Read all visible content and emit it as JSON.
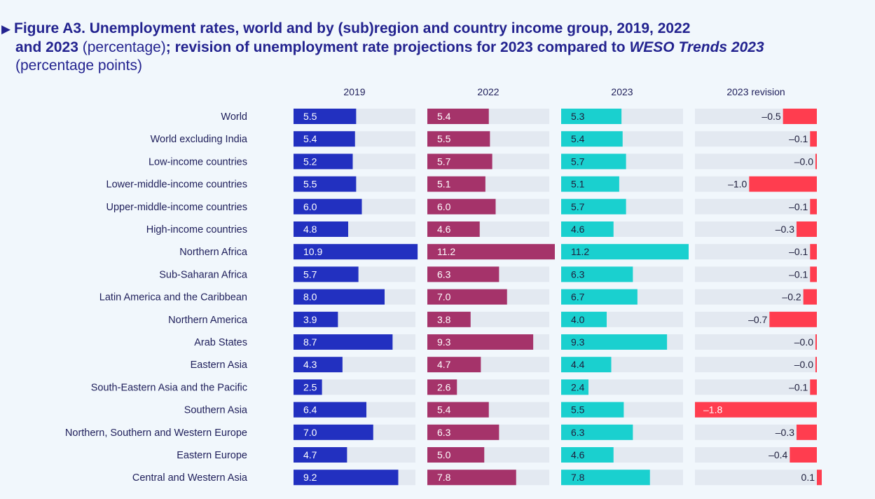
{
  "title": {
    "marker": "▶",
    "line1": "Figure A3.  Unemployment rates, world and by (sub)region and country income group, 2019, 2022",
    "line2_bold_a": "and 2023",
    "line2_normal": " (percentage)",
    "line2_bold_b": "; revision of unemployment rate projections for 2023 compared to ",
    "line2_italic": "WESO Trends 2023",
    "line3": "(percentage points)"
  },
  "colors": {
    "c2019": "#2230c0",
    "c2022": "#a5336a",
    "c2023": "#1ad0cf",
    "revision": "#ff3d4f",
    "track": "#e3e9f1"
  },
  "chart_data": {
    "type": "bar",
    "title": "Unemployment rates, world and by (sub)region and country income group, 2019, 2022 and 2023 (percentage); revision of unemployment rate projections for 2023 compared to WESO Trends 2023 (percentage points)",
    "categories": [
      "World",
      "World excluding India",
      "Low-income countries",
      "Lower-middle-income countries",
      "Upper-middle-income countries",
      "High-income countries",
      "Northern Africa",
      "Sub-Saharan Africa",
      "Latin America and the Caribbean",
      "Northern America",
      "Arab States",
      "Eastern Asia",
      "South-Eastern Asia and the Pacific",
      "Southern Asia",
      "Northern, Southern and Western Europe",
      "Eastern Europe",
      "Central and Western Asia"
    ],
    "series": [
      {
        "name": "2019",
        "values": [
          5.5,
          5.4,
          5.2,
          5.5,
          6.0,
          4.8,
          10.9,
          5.7,
          8.0,
          3.9,
          8.7,
          4.3,
          2.5,
          6.4,
          7.0,
          4.7,
          9.2
        ],
        "labels": [
          "5.5",
          "5.4",
          "5.2",
          "5.5",
          "6.0",
          "4.8",
          "10.9",
          "5.7",
          "8.0",
          "3.9",
          "8.7",
          "4.3",
          "2.5",
          "6.4",
          "7.0",
          "4.7",
          "9.2"
        ]
      },
      {
        "name": "2022",
        "values": [
          5.4,
          5.5,
          5.7,
          5.1,
          6.0,
          4.6,
          11.2,
          6.3,
          7.0,
          3.8,
          9.3,
          4.7,
          2.6,
          5.4,
          6.3,
          5.0,
          7.8
        ],
        "labels": [
          "5.4",
          "5.5",
          "5.7",
          "5.1",
          "6.0",
          "4.6",
          "11.2",
          "6.3",
          "7.0",
          "3.8",
          "9.3",
          "4.7",
          "2.6",
          "5.4",
          "6.3",
          "5.0",
          "7.8"
        ]
      },
      {
        "name": "2023",
        "values": [
          5.3,
          5.4,
          5.7,
          5.1,
          5.7,
          4.6,
          11.2,
          6.3,
          6.7,
          4.0,
          9.3,
          4.4,
          2.4,
          5.5,
          6.3,
          4.6,
          7.8
        ],
        "labels": [
          "5.3",
          "5.4",
          "5.7",
          "5.1",
          "5.7",
          "4.6",
          "11.2",
          "6.3",
          "6.7",
          "4.0",
          "9.3",
          "4.4",
          "2.4",
          "5.5",
          "6.3",
          "4.6",
          "7.8"
        ]
      },
      {
        "name": "2023 revision",
        "values": [
          -0.5,
          -0.1,
          -0.02,
          -1.0,
          -0.1,
          -0.3,
          -0.1,
          -0.1,
          -0.2,
          -0.7,
          -0.02,
          -0.02,
          -0.1,
          -1.8,
          -0.3,
          -0.4,
          0.1
        ],
        "labels": [
          "–0.5",
          "–0.1",
          "–0.0",
          "–1.0",
          "–0.1",
          "–0.3",
          "–0.1",
          "–0.1",
          "–0.2",
          "–0.7",
          "–0.0",
          "–0.0",
          "–0.1",
          "–1.8",
          "–0.3",
          "–0.4",
          "0.1"
        ]
      }
    ],
    "ylim_rate": [
      0,
      11.2
    ],
    "ylim_revision": [
      -1.8,
      0
    ],
    "xlabel": "",
    "ylabel": ""
  }
}
